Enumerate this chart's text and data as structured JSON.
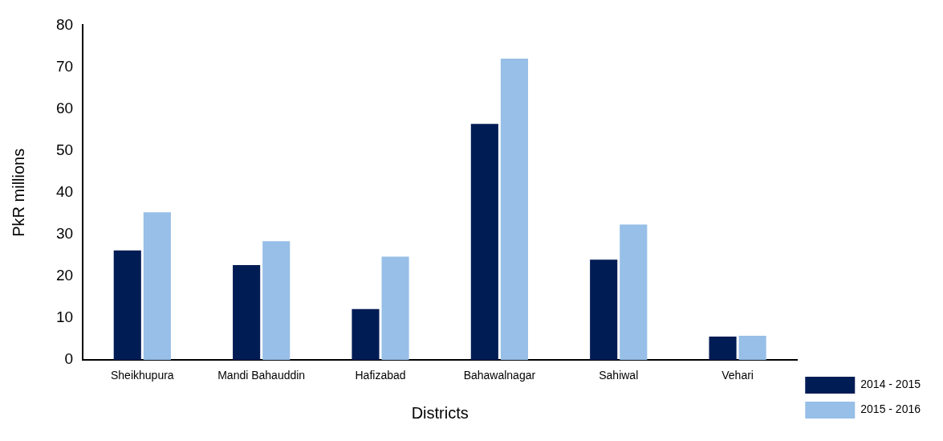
{
  "chart_data": {
    "type": "bar",
    "xlabel": "Districts",
    "ylabel": "PkR millions",
    "categories": [
      "Sheikhupura",
      "Mandi Bahauddin",
      "Hafizabad",
      "Bahawalnagar",
      "Sahiwal",
      "Vehari"
    ],
    "series": [
      {
        "name": "2014 - 2015",
        "color": "#001c54",
        "values": [
          26.2,
          22.7,
          12.2,
          56.4,
          24.0,
          5.6
        ]
      },
      {
        "name": "2015 - 2016",
        "color": "#97bfe7",
        "values": [
          35.3,
          28.4,
          24.7,
          72.0,
          32.4,
          5.8
        ]
      }
    ],
    "ylim": [
      0,
      80
    ],
    "yticks": [
      0,
      10,
      20,
      30,
      40,
      50,
      60,
      70,
      80
    ],
    "grid": false,
    "legend": "bottom right"
  }
}
